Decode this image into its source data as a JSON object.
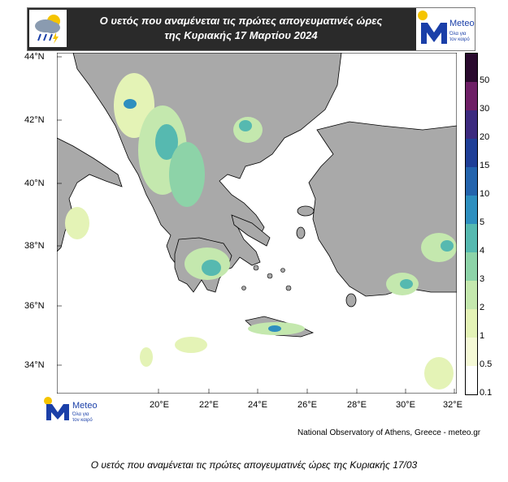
{
  "header": {
    "title_line1": "Ο υετός που αναμένεται τις πρώτες απογευματινές ώρες",
    "title_line2": "της Κυριακής 17 Μαρτίου 2024"
  },
  "logo": {
    "brand": "Meteo",
    "tagline_line1": "Όλα για",
    "tagline_line2": "τον καιρό",
    "brand_color": "#1a3fa8",
    "sun_color": "#f5c400"
  },
  "map": {
    "lat_labels": [
      "44°N",
      "42°N",
      "40°N",
      "38°N",
      "36°N",
      "34°N"
    ],
    "lon_labels": [
      "20°E",
      "22°E",
      "24°E",
      "26°E",
      "28°E",
      "30°E",
      "32°E"
    ],
    "sea_color": "#ffffff",
    "land_color": "#a9a9a9",
    "precip_colors": [
      "#f5f9d6",
      "#e4f3b6",
      "#c4e8ae",
      "#8dd3a8",
      "#56b9b0",
      "#2e8fbf",
      "#2464ad",
      "#1f3f97",
      "#3c2a7f",
      "#6e1f66",
      "#2a0a2e"
    ]
  },
  "colorbar": {
    "labels": [
      "50",
      "30",
      "20",
      "15",
      "10",
      "5",
      "4",
      "3",
      "2",
      "1",
      "0.5",
      "0.1"
    ],
    "colors": [
      "#2a0a2e",
      "#6e1f66",
      "#3c2a7f",
      "#1f3f97",
      "#2464ad",
      "#2e8fbf",
      "#56b9b0",
      "#8dd3a8",
      "#c4e8ae",
      "#e4f3b6",
      "#f5f9d6",
      "#ffffff"
    ]
  },
  "credit": "National Observatory of Athens, Greece - meteo.gr",
  "caption": "Ο υετός που αναμένεται τις  πρώτες απογευματινές ώρες της Κυριακής 17/03"
}
